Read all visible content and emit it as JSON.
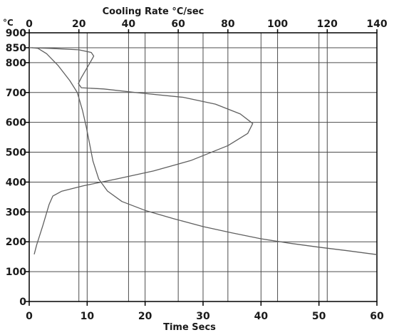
{
  "chart_data": {
    "type": "line",
    "title": "",
    "top_axis": {
      "label": "Cooling Rate  °C/sec",
      "range": [
        0,
        140
      ],
      "ticks": [
        "0",
        "20",
        "40",
        "60",
        "80",
        "100",
        "120",
        "140"
      ]
    },
    "x_axis": {
      "label": "Time  Secs",
      "range": [
        0,
        60
      ],
      "ticks": [
        "0",
        "10",
        "20",
        "30",
        "40",
        "50",
        "60"
      ]
    },
    "y_axis": {
      "unit": "°C",
      "range": [
        0,
        900
      ],
      "ticks": [
        "0",
        "100",
        "200",
        "300",
        "400",
        "500",
        "600",
        "700",
        "800",
        "850",
        "900"
      ]
    },
    "grid": true,
    "series": [
      {
        "id": "cooling-curve",
        "x_axis": "bottom",
        "line_color": "#606060",
        "points": [
          [
            0.4,
            850
          ],
          [
            1.5,
            848
          ],
          [
            3,
            830
          ],
          [
            5,
            790
          ],
          [
            7,
            740
          ],
          [
            8.3,
            700
          ],
          [
            9.2,
            640
          ],
          [
            9.9,
            580
          ],
          [
            10.4,
            530
          ],
          [
            11,
            470
          ],
          [
            12,
            410
          ],
          [
            13.5,
            370
          ],
          [
            16,
            335
          ],
          [
            20,
            305
          ],
          [
            25,
            277
          ],
          [
            30,
            251
          ],
          [
            35,
            230
          ],
          [
            40,
            210
          ],
          [
            45,
            195
          ],
          [
            50,
            182
          ],
          [
            55,
            170
          ],
          [
            60,
            157
          ]
        ]
      },
      {
        "id": "cooling-rate-curve",
        "x_axis": "top",
        "line_color": "#606060",
        "points": [
          [
            0,
            850
          ],
          [
            8,
            848
          ],
          [
            20,
            843
          ],
          [
            25,
            834
          ],
          [
            26,
            822
          ],
          [
            24,
            793
          ],
          [
            21,
            750
          ],
          [
            19.8,
            730
          ],
          [
            21,
            716
          ],
          [
            30,
            712
          ],
          [
            45,
            698
          ],
          [
            62,
            684
          ],
          [
            75,
            661
          ],
          [
            85,
            628
          ],
          [
            90,
            596
          ],
          [
            88,
            563
          ],
          [
            80,
            522
          ],
          [
            65,
            472
          ],
          [
            50,
            437
          ],
          [
            35,
            410
          ],
          [
            22,
            388
          ],
          [
            13,
            369
          ],
          [
            9.5,
            353
          ],
          [
            8,
            325
          ],
          [
            5.5,
            255
          ],
          [
            3,
            190
          ],
          [
            2,
            158
          ]
        ]
      }
    ]
  }
}
